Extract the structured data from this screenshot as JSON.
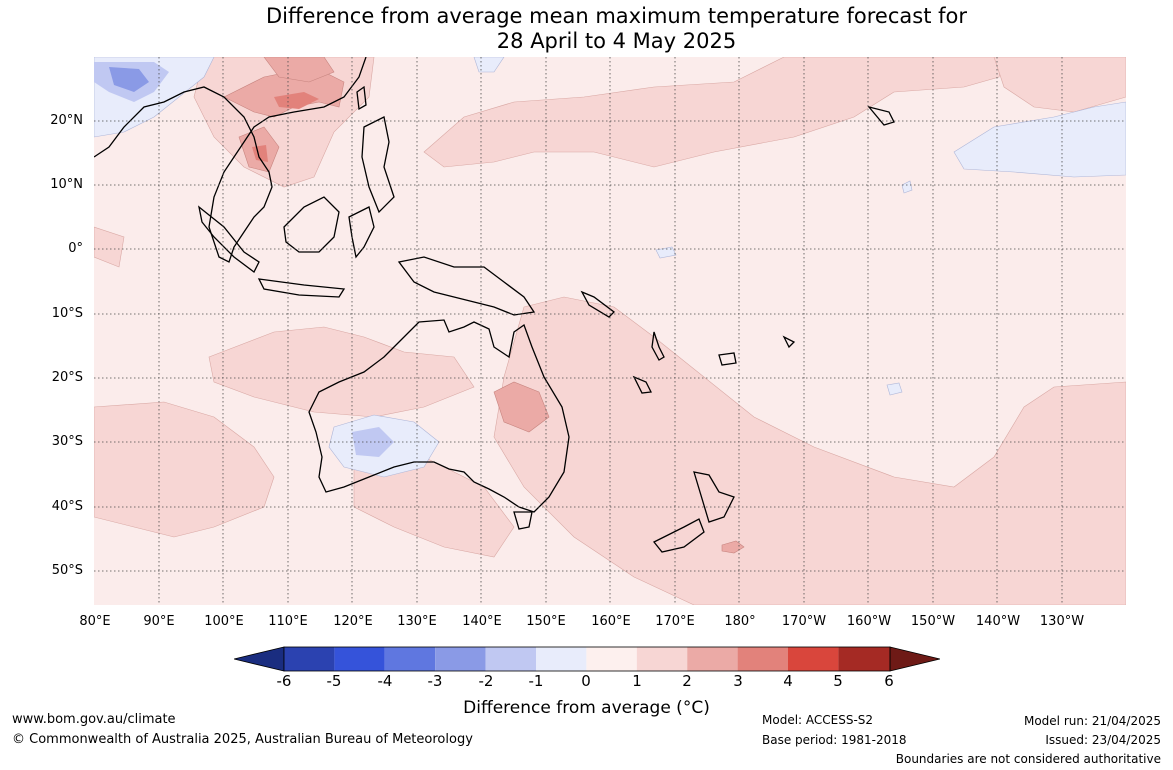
{
  "title": {
    "line1": "Difference from average mean maximum temperature forecast for",
    "line2": "28 April to 4 May 2025"
  },
  "map": {
    "longitude_ticks": [
      "80°E",
      "90°E",
      "100°E",
      "110°E",
      "120°E",
      "130°E",
      "140°E",
      "150°E",
      "160°E",
      "170°E",
      "180°",
      "170°W",
      "160°W",
      "150°W",
      "140°W",
      "130°W"
    ],
    "latitude_ticks": [
      "20°N",
      "10°N",
      "0°",
      "10°S",
      "20°S",
      "30°S",
      "40°S",
      "50°S"
    ],
    "graticule": "dotted",
    "ocean_color": "#fbeceb",
    "land_outline_color": "#000000"
  },
  "colorbar": {
    "labels": [
      "-6",
      "-5",
      "-4",
      "-3",
      "-2",
      "-1",
      "0",
      "1",
      "2",
      "3",
      "4",
      "5",
      "6"
    ],
    "colors": [
      "#1a2d80",
      "#2b42b0",
      "#3553da",
      "#5f77e0",
      "#8a9ae6",
      "#c0c8f2",
      "#e8ecfb",
      "#fdf0ee",
      "#f7d6d4",
      "#ebaaa6",
      "#e2827b",
      "#d9463c",
      "#a52a24",
      "#6e1a16"
    ],
    "title": "Difference from average (",
    "title_unit": "°C",
    "title_close": ")"
  },
  "footer": {
    "website": "www.bom.gov.au/climate",
    "copyright": "© Commonwealth of Australia 2025, Australian Bureau of Meteorology",
    "model": "Model: ACCESS-S2",
    "base_period": "Base period: 1981-2018",
    "model_run": "Model run: 21/04/2025",
    "issued": "Issued: 23/04/2025",
    "disclaimer": "Boundaries are not considered authoritative"
  }
}
